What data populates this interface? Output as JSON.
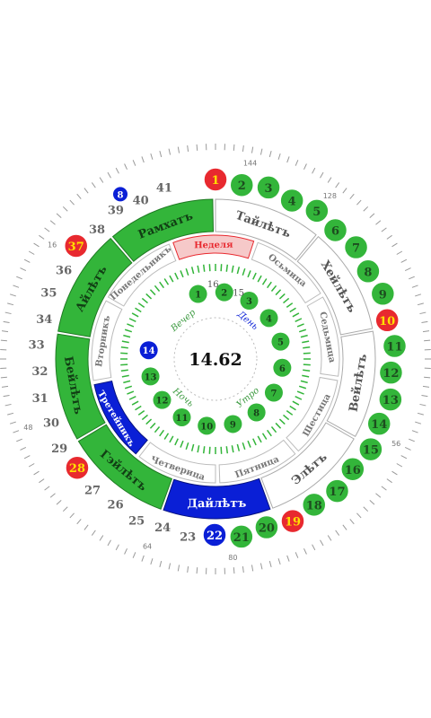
{
  "center": {
    "value": "14.62"
  },
  "inner_labels": {
    "vecher": "Вечер",
    "den": "День",
    "noch": "Ночь",
    "utro": "Утро"
  },
  "inner_tick_labels": {
    "t16": "16",
    "t15": "15"
  },
  "hour_labels": [
    "1",
    "2",
    "3",
    "4",
    "5",
    "6",
    "7",
    "8",
    "9",
    "10",
    "11",
    "12",
    "13",
    "14"
  ],
  "hour_colors": [
    "#33b53a",
    "#33b53a",
    "#33b53a",
    "#33b53a",
    "#33b53a",
    "#33b53a",
    "#33b53a",
    "#33b53a",
    "#33b53a",
    "#33b53a",
    "#33b53a",
    "#33b53a",
    "#33b53a",
    "#0a1fd6"
  ],
  "weekdays": [
    {
      "label": "Неделя",
      "highlighted": true
    },
    {
      "label": "Осьмица",
      "highlighted": false
    },
    {
      "label": "Седьмица",
      "highlighted": false
    },
    {
      "label": "Шестица",
      "highlighted": false
    },
    {
      "label": "Пятница",
      "highlighted": false
    },
    {
      "label": "Четверица",
      "highlighted": false
    },
    {
      "label": "Третейникъ",
      "highlighted": false,
      "active": true
    },
    {
      "label": "Вторникъ",
      "highlighted": false
    },
    {
      "label": "Понедельникъ",
      "highlighted": false
    }
  ],
  "months": [
    {
      "label": "Рамхатъ",
      "active": true
    },
    {
      "label": "Тайлѣтъ",
      "active": false
    },
    {
      "label": "Хейлѣтъ",
      "active": false
    },
    {
      "label": "Вейлѣтъ",
      "active": false
    },
    {
      "label": "Элѣтъ",
      "active": false
    },
    {
      "label": "Дайлѣтъ",
      "active": false,
      "current": true
    },
    {
      "label": "Гэйлѣтъ",
      "active": true
    },
    {
      "label": "Бейлѣтъ",
      "active": true
    },
    {
      "label": "Айлѣтъ",
      "active": true
    }
  ],
  "day_numbers": [
    {
      "n": "1",
      "style": "red"
    },
    {
      "n": "2",
      "style": "green"
    },
    {
      "n": "3",
      "style": "green"
    },
    {
      "n": "4",
      "style": "green"
    },
    {
      "n": "5",
      "style": "green"
    },
    {
      "n": "6",
      "style": "green"
    },
    {
      "n": "7",
      "style": "green"
    },
    {
      "n": "8",
      "style": "green"
    },
    {
      "n": "9",
      "style": "green"
    },
    {
      "n": "10",
      "style": "red"
    },
    {
      "n": "11",
      "style": "green"
    },
    {
      "n": "12",
      "style": "green"
    },
    {
      "n": "13",
      "style": "green"
    },
    {
      "n": "14",
      "style": "green"
    },
    {
      "n": "15",
      "style": "green"
    },
    {
      "n": "16",
      "style": "green"
    },
    {
      "n": "17",
      "style": "green"
    },
    {
      "n": "18",
      "style": "green"
    },
    {
      "n": "19",
      "style": "red"
    },
    {
      "n": "20",
      "style": "green"
    },
    {
      "n": "21",
      "style": "green"
    },
    {
      "n": "22",
      "style": "blue"
    },
    {
      "n": "23",
      "style": "plain"
    },
    {
      "n": "24",
      "style": "plain"
    },
    {
      "n": "25",
      "style": "plain"
    },
    {
      "n": "26",
      "style": "plain"
    },
    {
      "n": "27",
      "style": "plain"
    },
    {
      "n": "28",
      "style": "red"
    },
    {
      "n": "29",
      "style": "plain"
    },
    {
      "n": "30",
      "style": "plain"
    },
    {
      "n": "31",
      "style": "plain"
    },
    {
      "n": "32",
      "style": "plain"
    },
    {
      "n": "33",
      "style": "plain"
    },
    {
      "n": "34",
      "style": "plain"
    },
    {
      "n": "35",
      "style": "plain"
    },
    {
      "n": "36",
      "style": "plain"
    },
    {
      "n": "37",
      "style": "red"
    },
    {
      "n": "38",
      "style": "plain"
    },
    {
      "n": "39",
      "style": "plain"
    },
    {
      "n": "40",
      "style": "plain"
    },
    {
      "n": "41",
      "style": "plain"
    }
  ],
  "outer_scale_labels": [
    "144",
    "128",
    "56",
    "80",
    "64",
    "48",
    "16"
  ],
  "top_marker": {
    "label": "8"
  },
  "colors": {
    "green": "#33b53a",
    "blue": "#0a1fd6",
    "red": "#e8292f",
    "pink": "#f6c9c9",
    "yellow_text": "#ffe000"
  }
}
